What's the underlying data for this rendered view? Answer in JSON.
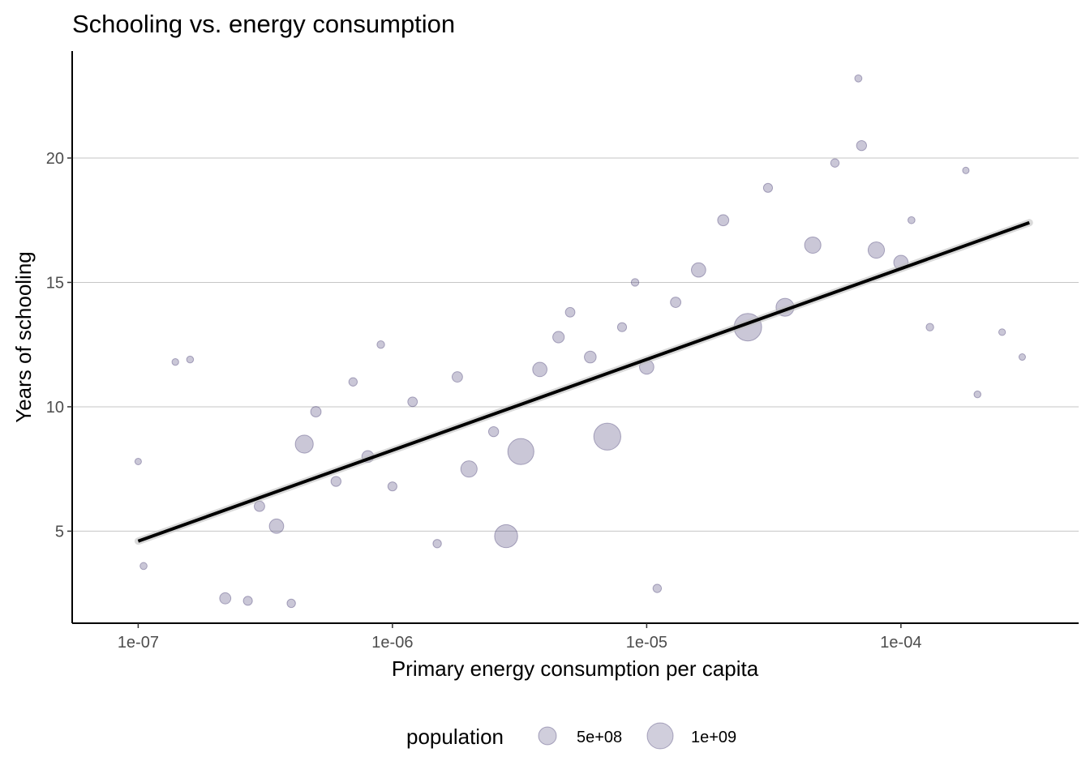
{
  "chart_data": {
    "type": "scatter",
    "title": "Schooling vs. energy consumption",
    "xlabel": "Primary energy consumption per capita",
    "ylabel": "Years of schooling",
    "x_scale": "log10",
    "xlim": [
      5.5e-08,
      0.0005
    ],
    "ylim": [
      1.3,
      24.3
    ],
    "x_ticks": [
      {
        "value": 1e-07,
        "label": "1e-07"
      },
      {
        "value": 1e-06,
        "label": "1e-06"
      },
      {
        "value": 1e-05,
        "label": "1e-05"
      },
      {
        "value": 0.0001,
        "label": "1e-04"
      }
    ],
    "y_ticks": [
      {
        "value": 5,
        "label": "5"
      },
      {
        "value": 10,
        "label": "10"
      },
      {
        "value": 15,
        "label": "15"
      },
      {
        "value": 20,
        "label": "20"
      }
    ],
    "grid": "horizontal major",
    "point_color": "#2a1f5e",
    "point_alpha": 0.25,
    "trend_line": {
      "color": "#000000",
      "points": [
        {
          "x": 1e-07,
          "y": 4.6
        },
        {
          "x": 0.00032,
          "y": 17.4
        }
      ]
    },
    "points": [
      {
        "x": 1e-07,
        "y": 7.8,
        "pop": 2000000.0
      },
      {
        "x": 1.05e-07,
        "y": 3.6,
        "pop": 5000000.0
      },
      {
        "x": 1.4e-07,
        "y": 11.8,
        "pop": 3000000.0
      },
      {
        "x": 1.6e-07,
        "y": 11.9,
        "pop": 4000000.0
      },
      {
        "x": 2.2e-07,
        "y": 2.3,
        "pop": 80000000.0
      },
      {
        "x": 2.7e-07,
        "y": 2.2,
        "pop": 30000000.0
      },
      {
        "x": 3e-07,
        "y": 6.0,
        "pop": 60000000.0
      },
      {
        "x": 3.5e-07,
        "y": 5.2,
        "pop": 200000000.0
      },
      {
        "x": 4e-07,
        "y": 2.1,
        "pop": 20000000.0
      },
      {
        "x": 4.5e-07,
        "y": 8.5,
        "pop": 400000000.0
      },
      {
        "x": 5e-07,
        "y": 9.8,
        "pop": 60000000.0
      },
      {
        "x": 6e-07,
        "y": 7.0,
        "pop": 50000000.0
      },
      {
        "x": 7e-07,
        "y": 11.0,
        "pop": 20000000.0
      },
      {
        "x": 8e-07,
        "y": 8.0,
        "pop": 100000000.0
      },
      {
        "x": 9e-07,
        "y": 12.5,
        "pop": 10000000.0
      },
      {
        "x": 1e-06,
        "y": 6.8,
        "pop": 30000000.0
      },
      {
        "x": 1.2e-06,
        "y": 10.2,
        "pop": 40000000.0
      },
      {
        "x": 1.5e-06,
        "y": 4.5,
        "pop": 20000000.0
      },
      {
        "x": 1.8e-06,
        "y": 11.2,
        "pop": 60000000.0
      },
      {
        "x": 2e-06,
        "y": 7.5,
        "pop": 300000000.0
      },
      {
        "x": 2.5e-06,
        "y": 9.0,
        "pop": 50000000.0
      },
      {
        "x": 2.8e-06,
        "y": 4.8,
        "pop": 800000000.0
      },
      {
        "x": 3.2e-06,
        "y": 8.2,
        "pop": 1100000000.0
      },
      {
        "x": 3.8e-06,
        "y": 11.5,
        "pop": 200000000.0
      },
      {
        "x": 4.5e-06,
        "y": 12.8,
        "pop": 90000000.0
      },
      {
        "x": 5e-06,
        "y": 13.8,
        "pop": 40000000.0
      },
      {
        "x": 6e-06,
        "y": 12.0,
        "pop": 100000000.0
      },
      {
        "x": 7e-06,
        "y": 8.8,
        "pop": 1200000000.0
      },
      {
        "x": 8e-06,
        "y": 13.2,
        "pop": 30000000.0
      },
      {
        "x": 9e-06,
        "y": 15.0,
        "pop": 10000000.0
      },
      {
        "x": 1e-05,
        "y": 11.6,
        "pop": 200000000.0
      },
      {
        "x": 1.1e-05,
        "y": 2.7,
        "pop": 20000000.0
      },
      {
        "x": 1.3e-05,
        "y": 14.2,
        "pop": 60000000.0
      },
      {
        "x": 1.6e-05,
        "y": 15.5,
        "pop": 200000000.0
      },
      {
        "x": 2e-05,
        "y": 17.5,
        "pop": 80000000.0
      },
      {
        "x": 2.5e-05,
        "y": 13.2,
        "pop": 1300000000.0
      },
      {
        "x": 3e-05,
        "y": 18.8,
        "pop": 30000000.0
      },
      {
        "x": 3.5e-05,
        "y": 14.0,
        "pop": 400000000.0
      },
      {
        "x": 4.5e-05,
        "y": 16.5,
        "pop": 300000000.0
      },
      {
        "x": 5.5e-05,
        "y": 19.8,
        "pop": 20000000.0
      },
      {
        "x": 6.8e-05,
        "y": 23.2,
        "pop": 6000000.0
      },
      {
        "x": 7e-05,
        "y": 20.5,
        "pop": 50000000.0
      },
      {
        "x": 8e-05,
        "y": 16.3,
        "pop": 300000000.0
      },
      {
        "x": 0.0001,
        "y": 15.8,
        "pop": 200000000.0
      },
      {
        "x": 0.00011,
        "y": 17.5,
        "pop": 5000000.0
      },
      {
        "x": 0.00013,
        "y": 13.2,
        "pop": 10000000.0
      },
      {
        "x": 0.00018,
        "y": 19.5,
        "pop": 2000000.0
      },
      {
        "x": 0.0002,
        "y": 10.5,
        "pop": 4000000.0
      },
      {
        "x": 0.00025,
        "y": 13.0,
        "pop": 3000000.0
      },
      {
        "x": 0.0003,
        "y": 12.0,
        "pop": 2000000.0
      }
    ]
  },
  "legend": {
    "title": "population",
    "position": "bottom",
    "entries": [
      {
        "label": "5e+08",
        "value": 500000000.0
      },
      {
        "label": "1e+09",
        "value": 1000000000.0
      }
    ]
  }
}
